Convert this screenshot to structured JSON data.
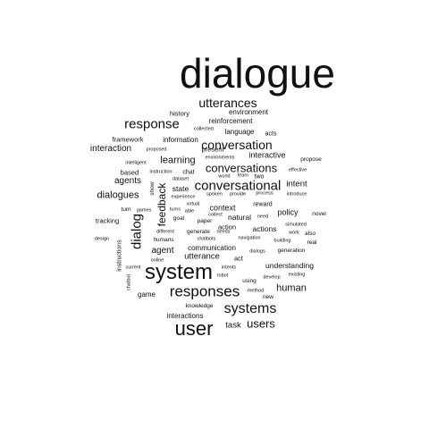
{
  "cloud": {
    "color": "#111111",
    "words": [
      {
        "text": "dialogue",
        "weight": 100
      },
      {
        "text": "system",
        "weight": 48
      },
      {
        "text": "user",
        "weight": 45
      },
      {
        "text": "responses",
        "weight": 34
      },
      {
        "text": "systems",
        "weight": 33
      },
      {
        "text": "conversational",
        "weight": 30
      },
      {
        "text": "response",
        "weight": 30
      },
      {
        "text": "dialog",
        "weight": 30
      },
      {
        "text": "conversation",
        "weight": 28
      },
      {
        "text": "utterances",
        "weight": 28
      },
      {
        "text": "conversations",
        "weight": 26
      },
      {
        "text": "users",
        "weight": 25
      },
      {
        "text": "feedback",
        "weight": 24
      },
      {
        "text": "dialogues",
        "weight": 22
      },
      {
        "text": "learning",
        "weight": 22
      },
      {
        "text": "human",
        "weight": 22
      },
      {
        "text": "agents",
        "weight": 20
      },
      {
        "text": "interaction",
        "weight": 20
      },
      {
        "text": "agent",
        "weight": 20
      },
      {
        "text": "utterance",
        "weight": 19
      },
      {
        "text": "intent",
        "weight": 19
      },
      {
        "text": "task",
        "weight": 19
      },
      {
        "text": "interactive",
        "weight": 18
      },
      {
        "text": "context",
        "weight": 18
      },
      {
        "text": "policy",
        "weight": 18
      },
      {
        "text": "state",
        "weight": 17
      },
      {
        "text": "understanding",
        "weight": 17
      },
      {
        "text": "actions",
        "weight": 17
      },
      {
        "text": "natural",
        "weight": 17
      },
      {
        "text": "reinforcement",
        "weight": 16
      },
      {
        "text": "environment",
        "weight": 16
      },
      {
        "text": "language",
        "weight": 16
      },
      {
        "text": "information",
        "weight": 16
      },
      {
        "text": "communication",
        "weight": 16
      },
      {
        "text": "interactions",
        "weight": 16
      },
      {
        "text": "game",
        "weight": 16
      },
      {
        "text": "framework",
        "weight": 15
      },
      {
        "text": "history",
        "weight": 15
      },
      {
        "text": "present",
        "weight": 15
      },
      {
        "text": "action",
        "weight": 15
      },
      {
        "text": "act",
        "weight": 15
      },
      {
        "text": "based",
        "weight": 15
      },
      {
        "text": "tracking",
        "weight": 15
      },
      {
        "text": "instructions",
        "weight": 14
      },
      {
        "text": "acts",
        "weight": 14
      },
      {
        "text": "chat",
        "weight": 14
      },
      {
        "text": "two",
        "weight": 14
      },
      {
        "text": "reward",
        "weight": 14
      },
      {
        "text": "generate",
        "weight": 13
      },
      {
        "text": "goal",
        "weight": 13
      },
      {
        "text": "turn",
        "weight": 13
      },
      {
        "text": "paper",
        "weight": 13
      },
      {
        "text": "show",
        "weight": 13
      },
      {
        "text": "novel",
        "weight": 13
      },
      {
        "text": "also",
        "weight": 13
      },
      {
        "text": "generation",
        "weight": 13
      },
      {
        "text": "real",
        "weight": 13
      },
      {
        "text": "humans",
        "weight": 13
      },
      {
        "text": "knowledge",
        "weight": 13
      },
      {
        "text": "propose",
        "weight": 13
      },
      {
        "text": "using",
        "weight": 13
      },
      {
        "text": "new",
        "weight": 13
      },
      {
        "text": "intelligent",
        "weight": 11
      },
      {
        "text": "proposed",
        "weight": 11
      },
      {
        "text": "collected",
        "weight": 11
      },
      {
        "text": "environments",
        "weight": 11
      },
      {
        "text": "instruction",
        "weight": 11
      },
      {
        "text": "dataset",
        "weight": 11
      },
      {
        "text": "experience",
        "weight": 11
      },
      {
        "text": "spoken",
        "weight": 11
      },
      {
        "text": "provide",
        "weight": 11
      },
      {
        "text": "process",
        "weight": 11
      },
      {
        "text": "introduce",
        "weight": 11
      },
      {
        "text": "learn",
        "weight": 11
      },
      {
        "text": "world",
        "weight": 11
      },
      {
        "text": "effective",
        "weight": 11
      },
      {
        "text": "virtual",
        "weight": 11
      },
      {
        "text": "turns",
        "weight": 11
      },
      {
        "text": "able",
        "weight": 11
      },
      {
        "text": "games",
        "weight": 11
      },
      {
        "text": "collect",
        "weight": 11
      },
      {
        "text": "need",
        "weight": 11
      },
      {
        "text": "simulated",
        "weight": 11
      },
      {
        "text": "work",
        "weight": 11
      },
      {
        "text": "different",
        "weight": 11
      },
      {
        "text": "needs",
        "weight": 11
      },
      {
        "text": "navigation",
        "weight": 11
      },
      {
        "text": "building",
        "weight": 11
      },
      {
        "text": "design",
        "weight": 11
      },
      {
        "text": "chatbots",
        "weight": 11
      },
      {
        "text": "online",
        "weight": 11
      },
      {
        "text": "dialogs",
        "weight": 11
      },
      {
        "text": "current",
        "weight": 11
      },
      {
        "text": "intents",
        "weight": 11
      },
      {
        "text": "develop",
        "weight": 11
      },
      {
        "text": "existing",
        "weight": 11
      },
      {
        "text": "chatbot",
        "weight": 11
      },
      {
        "text": "robot",
        "weight": 11
      },
      {
        "text": "method",
        "weight": 11
      }
    ]
  }
}
